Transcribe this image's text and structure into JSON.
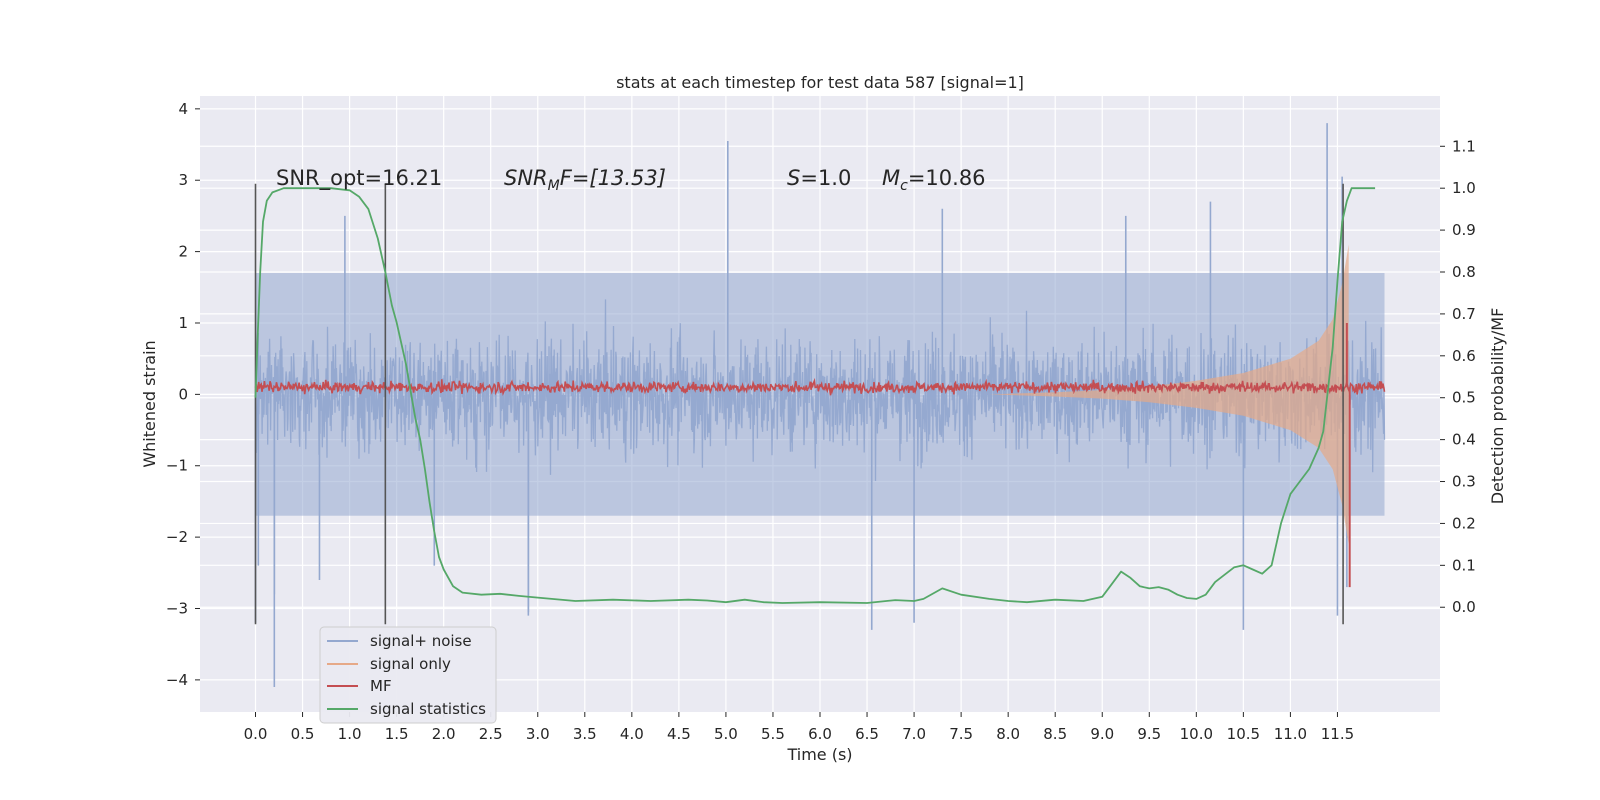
{
  "chart_data": {
    "type": "line",
    "title": "stats at each timestep for test data 587 [signal=1]",
    "xlabel": "Time (s)",
    "ylabel": "Whitened strain",
    "ylabel_right": "Detection probability/MF",
    "xlim": [
      -0.59,
      12.59
    ],
    "ylim": [
      -4.45,
      4.18
    ],
    "ylim_right": [
      -0.25,
      1.22
    ],
    "xticks": [
      "0.0",
      "0.5",
      "1.0",
      "1.5",
      "2.0",
      "2.5",
      "3.0",
      "3.5",
      "4.0",
      "4.5",
      "5.0",
      "5.5",
      "6.0",
      "6.5",
      "7.0",
      "7.5",
      "8.0",
      "8.5",
      "9.0",
      "9.5",
      "10.0",
      "10.5",
      "11.0",
      "11.5"
    ],
    "yticks": [
      "−4",
      "−3",
      "−2",
      "−1",
      "0",
      "1",
      "2",
      "3",
      "4"
    ],
    "yticks_right": [
      "0.0",
      "0.1",
      "0.2",
      "0.3",
      "0.4",
      "0.5",
      "0.6",
      "0.7",
      "0.8",
      "0.9",
      "1.0",
      "1.1"
    ],
    "annotations": {
      "snr_opt": "SNR_opt=16.21",
      "snr_mf_sym": "SNR",
      "snr_mf_sub": "M",
      "snr_mf_rest": "F=[13.53]",
      "s_sym": "S",
      "s_rest": "=1.0",
      "mc_sym": "M",
      "mc_sub": "c",
      "mc_rest": "=10.86"
    },
    "vlines_s": [
      0.0,
      1.38,
      11.56
    ],
    "legend": {
      "placement": "lower-left",
      "entries": [
        {
          "label": "signal+ noise",
          "color": "#94a8cf"
        },
        {
          "label": "signal only",
          "color": "#e6a988"
        },
        {
          "label": "MF",
          "color": "#c44e52"
        },
        {
          "label": "signal statistics",
          "color": "#55a868"
        }
      ]
    },
    "series": [
      {
        "name": "signal+ noise",
        "axis": "left",
        "description": "noise band",
        "envelope_t": [
          0,
          12.0
        ],
        "envelope_abs": 1.7,
        "peaks_t": [
          0.0,
          0.03,
          0.2,
          0.68,
          0.95,
          2.9,
          5.02,
          7.3,
          9.25,
          10.15,
          11.39,
          11.55,
          11.6,
          0.2,
          1.9,
          2.9,
          6.55,
          7.0,
          10.5,
          11.5
        ],
        "peaks_v": [
          -3.2,
          -2.4,
          -4.1,
          -2.6,
          2.5,
          -3.1,
          3.55,
          2.6,
          2.5,
          2.7,
          3.8,
          3.05,
          -2.7,
          -2.8,
          -2.4,
          -3.05,
          -3.3,
          -3.2,
          -3.3,
          -3.1
        ]
      },
      {
        "name": "signal only",
        "axis": "left",
        "t": [
          7.8,
          8.5,
          9.0,
          9.5,
          10.0,
          10.5,
          11.0,
          11.3,
          11.45,
          11.55,
          11.62
        ],
        "v_abs": [
          0.0,
          0.03,
          0.06,
          0.11,
          0.19,
          0.3,
          0.5,
          0.75,
          1.05,
          1.55,
          2.1
        ]
      },
      {
        "name": "MF",
        "axis": "left",
        "base": 0.1,
        "noise_amp": 0.12,
        "spikes_t": [
          11.6,
          11.63
        ],
        "spikes_v": [
          1.0,
          -2.7
        ]
      },
      {
        "name": "signal statistics",
        "axis": "right",
        "t": [
          0.0,
          0.02,
          0.05,
          0.08,
          0.12,
          0.18,
          0.3,
          0.5,
          0.8,
          1.0,
          1.1,
          1.2,
          1.3,
          1.38,
          1.45,
          1.5,
          1.6,
          1.7,
          1.75,
          1.8,
          1.85,
          1.9,
          1.95,
          2.0,
          2.1,
          2.2,
          2.4,
          2.6,
          2.8,
          3.0,
          3.4,
          3.8,
          4.2,
          4.6,
          4.8,
          5.0,
          5.2,
          5.4,
          5.6,
          6.0,
          6.5,
          6.8,
          7.0,
          7.1,
          7.3,
          7.5,
          7.8,
          8.0,
          8.2,
          8.5,
          8.8,
          9.0,
          9.1,
          9.2,
          9.3,
          9.4,
          9.5,
          9.6,
          9.7,
          9.8,
          9.9,
          10.0,
          10.1,
          10.2,
          10.4,
          10.5,
          10.6,
          10.7,
          10.8,
          10.9,
          11.0,
          11.1,
          11.2,
          11.3,
          11.35,
          11.4,
          11.45,
          11.5,
          11.55,
          11.6,
          11.65,
          11.7,
          11.8,
          11.9
        ],
        "v": [
          0.5,
          0.63,
          0.8,
          0.92,
          0.97,
          0.99,
          1.0,
          1.0,
          1.0,
          0.995,
          0.98,
          0.95,
          0.88,
          0.8,
          0.72,
          0.68,
          0.58,
          0.45,
          0.4,
          0.33,
          0.25,
          0.18,
          0.12,
          0.09,
          0.05,
          0.035,
          0.03,
          0.032,
          0.027,
          0.023,
          0.015,
          0.018,
          0.015,
          0.018,
          0.016,
          0.012,
          0.018,
          0.012,
          0.01,
          0.012,
          0.01,
          0.017,
          0.015,
          0.02,
          0.045,
          0.03,
          0.02,
          0.015,
          0.012,
          0.018,
          0.015,
          0.025,
          0.055,
          0.085,
          0.07,
          0.05,
          0.045,
          0.048,
          0.042,
          0.03,
          0.022,
          0.02,
          0.03,
          0.06,
          0.095,
          0.1,
          0.09,
          0.08,
          0.1,
          0.2,
          0.27,
          0.3,
          0.33,
          0.38,
          0.42,
          0.52,
          0.62,
          0.78,
          0.92,
          0.97,
          1.0,
          1.0,
          1.0,
          1.0
        ]
      }
    ]
  }
}
